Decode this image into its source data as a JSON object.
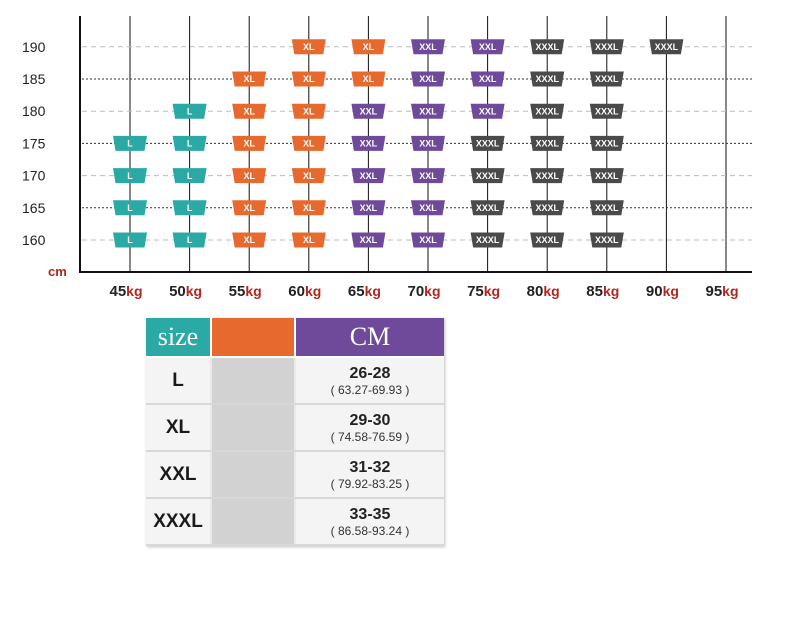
{
  "chart_data": {
    "type": "table",
    "title": "",
    "xlabel": "kg",
    "ylabel": "cm",
    "x_values": [
      45,
      50,
      55,
      60,
      65,
      70,
      75,
      80,
      85,
      90,
      95
    ],
    "x_unit": "kg",
    "y_values": [
      160,
      165,
      170,
      175,
      180,
      185,
      190
    ],
    "y_unit": "cm",
    "grid": true,
    "series": [
      {
        "name": "L",
        "color": "#2aa9a5",
        "points": [
          [
            45,
            160
          ],
          [
            45,
            165
          ],
          [
            45,
            170
          ],
          [
            45,
            175
          ],
          [
            50,
            160
          ],
          [
            50,
            165
          ],
          [
            50,
            170
          ],
          [
            50,
            175
          ],
          [
            50,
            180
          ]
        ]
      },
      {
        "name": "XL",
        "color": "#e8692e",
        "points": [
          [
            55,
            160
          ],
          [
            55,
            165
          ],
          [
            55,
            170
          ],
          [
            55,
            175
          ],
          [
            55,
            180
          ],
          [
            55,
            185
          ],
          [
            60,
            160
          ],
          [
            60,
            165
          ],
          [
            60,
            170
          ],
          [
            60,
            175
          ],
          [
            60,
            180
          ],
          [
            60,
            185
          ],
          [
            60,
            190
          ],
          [
            65,
            185
          ],
          [
            65,
            190
          ]
        ]
      },
      {
        "name": "XXL",
        "color": "#6f4a9b",
        "points": [
          [
            65,
            160
          ],
          [
            65,
            165
          ],
          [
            65,
            170
          ],
          [
            65,
            175
          ],
          [
            65,
            180
          ],
          [
            70,
            160
          ],
          [
            70,
            165
          ],
          [
            70,
            170
          ],
          [
            70,
            175
          ],
          [
            70,
            180
          ],
          [
            70,
            185
          ],
          [
            70,
            190
          ],
          [
            75,
            180
          ],
          [
            75,
            185
          ],
          [
            75,
            190
          ]
        ]
      },
      {
        "name": "XXXL",
        "color": "#4a4a4a",
        "points": [
          [
            75,
            160
          ],
          [
            75,
            165
          ],
          [
            75,
            170
          ],
          [
            75,
            175
          ],
          [
            80,
            160
          ],
          [
            80,
            165
          ],
          [
            80,
            170
          ],
          [
            80,
            175
          ],
          [
            80,
            180
          ],
          [
            80,
            185
          ],
          [
            80,
            190
          ],
          [
            85,
            160
          ],
          [
            85,
            165
          ],
          [
            85,
            170
          ],
          [
            85,
            175
          ],
          [
            85,
            180
          ],
          [
            85,
            185
          ],
          [
            85,
            190
          ],
          [
            90,
            190
          ]
        ]
      }
    ]
  },
  "size_table": {
    "header": {
      "size": "size",
      "middle": "",
      "cm": "CM"
    },
    "rows": [
      {
        "size": "L",
        "cm": "26-28",
        "range": "( 63.27-69.93 )"
      },
      {
        "size": "XL",
        "cm": "29-30",
        "range": "( 74.58-76.59 )"
      },
      {
        "size": "XXL",
        "cm": "31-32",
        "range": "( 79.92-83.25 )"
      },
      {
        "size": "XXXL",
        "cm": "33-35",
        "range": "( 86.58-93.24 )"
      }
    ]
  }
}
